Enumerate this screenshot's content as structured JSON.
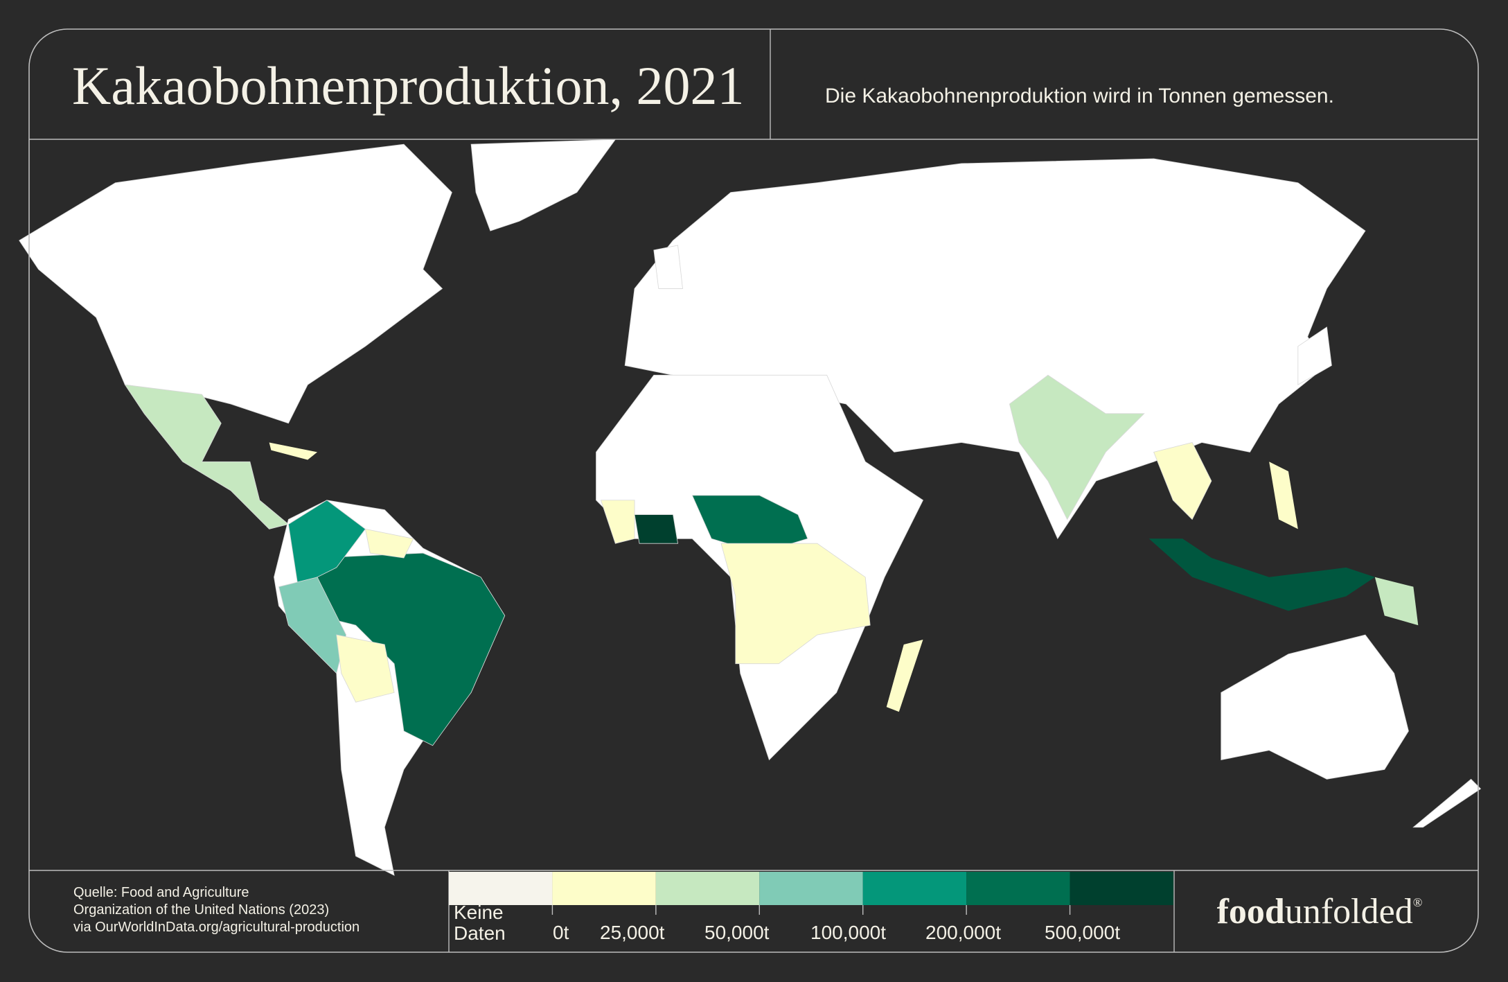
{
  "header": {
    "title": "Kakaobohnenproduktion, 2021",
    "subtitle": "Die Kakaobohnenproduktion wird in Tonnen gemessen."
  },
  "source": [
    "Quelle: Food and Agriculture",
    "Organization of the United Nations (2023)",
    "via OurWorldInData.org/agricultural-production"
  ],
  "legend": [
    {
      "label": "Keine Daten",
      "color": "#f6f4ec"
    },
    {
      "label": "0t",
      "color": "#fdfdc9"
    },
    {
      "label": "25,000t",
      "color": "#c6e8c0"
    },
    {
      "label": "50,000t",
      "color": "#80cbb6"
    },
    {
      "label": "100,000t",
      "color": "#04977a"
    },
    {
      "label": "200,000t",
      "color": "#006f50"
    },
    {
      "label": "500,000t",
      "color": "#00402e"
    }
  ],
  "logo": {
    "bold": "food",
    "regular": "unfolded",
    "mark": "®"
  }
}
